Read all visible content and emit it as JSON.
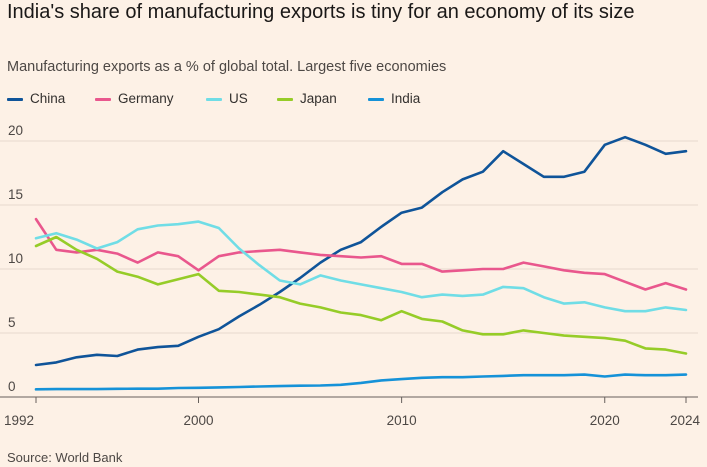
{
  "title": "India's share of manufacturing exports is tiny for an economy of its size",
  "subtitle": "Manufacturing exports as a % of global total. Largest five economies",
  "source": "Source: World Bank",
  "chart_data": {
    "type": "line",
    "title": "India's share of manufacturing exports is tiny for an economy of its size",
    "subtitle": "Manufacturing exports as a % of global total. Largest five economies",
    "xlabel": "",
    "ylabel": "",
    "xlim": [
      1992,
      2024
    ],
    "ylim": [
      0,
      20
    ],
    "grid": true,
    "legend_position": "top-left",
    "x_ticks": [
      "1992",
      "2000",
      "2010",
      "2020",
      "2024"
    ],
    "y_ticks": [
      "0",
      "5",
      "10",
      "15",
      "20"
    ],
    "x": [
      1992,
      1993,
      1994,
      1995,
      1996,
      1997,
      1998,
      1999,
      2000,
      2001,
      2002,
      2003,
      2004,
      2005,
      2006,
      2007,
      2008,
      2009,
      2010,
      2011,
      2012,
      2013,
      2014,
      2015,
      2016,
      2017,
      2018,
      2019,
      2020,
      2021,
      2022,
      2023,
      2024
    ],
    "series": [
      {
        "name": "China",
        "color": "#0f5499",
        "values": [
          2.5,
          2.7,
          3.1,
          3.3,
          3.2,
          3.7,
          3.9,
          4.0,
          4.7,
          5.3,
          6.3,
          7.2,
          8.2,
          9.3,
          10.5,
          11.5,
          12.1,
          13.3,
          14.4,
          14.8,
          16.0,
          17.0,
          17.6,
          19.2,
          18.2,
          17.2,
          17.2,
          17.6,
          19.7,
          20.3,
          19.7,
          19.0,
          19.2
        ]
      },
      {
        "name": "Germany",
        "color": "#e9578d",
        "values": [
          13.9,
          11.5,
          11.3,
          11.5,
          11.2,
          10.5,
          11.3,
          11.0,
          9.9,
          11.0,
          11.3,
          11.4,
          11.5,
          11.3,
          11.1,
          11.0,
          10.9,
          11.0,
          10.4,
          10.4,
          9.8,
          9.9,
          10.0,
          10.0,
          10.5,
          10.2,
          9.9,
          9.7,
          9.6,
          9.0,
          8.4,
          8.9,
          8.4
        ]
      },
      {
        "name": "US",
        "color": "#70dde6",
        "values": [
          12.4,
          12.8,
          12.3,
          11.6,
          12.1,
          13.1,
          13.4,
          13.5,
          13.7,
          13.2,
          11.6,
          10.3,
          9.1,
          8.8,
          9.5,
          9.1,
          8.8,
          8.5,
          8.2,
          7.8,
          8.0,
          7.9,
          8.0,
          8.6,
          8.5,
          7.8,
          7.3,
          7.4,
          7.0,
          6.7,
          6.7,
          7.0,
          6.8
        ]
      },
      {
        "name": "Japan",
        "color": "#96cc28",
        "values": [
          11.8,
          12.5,
          11.5,
          10.8,
          9.8,
          9.4,
          8.8,
          9.2,
          9.6,
          8.3,
          8.2,
          8.0,
          7.8,
          7.3,
          7.0,
          6.6,
          6.4,
          6.0,
          6.7,
          6.1,
          5.9,
          5.2,
          4.9,
          4.9,
          5.2,
          5.0,
          4.8,
          4.7,
          4.6,
          4.4,
          3.8,
          3.7,
          3.4
        ]
      },
      {
        "name": "India",
        "color": "#1592d8",
        "values": [
          0.6,
          0.62,
          0.62,
          0.62,
          0.64,
          0.65,
          0.65,
          0.7,
          0.72,
          0.75,
          0.78,
          0.82,
          0.85,
          0.88,
          0.9,
          0.95,
          1.1,
          1.3,
          1.4,
          1.5,
          1.55,
          1.55,
          1.6,
          1.65,
          1.7,
          1.7,
          1.7,
          1.75,
          1.6,
          1.75,
          1.7,
          1.7,
          1.75
        ]
      }
    ]
  }
}
